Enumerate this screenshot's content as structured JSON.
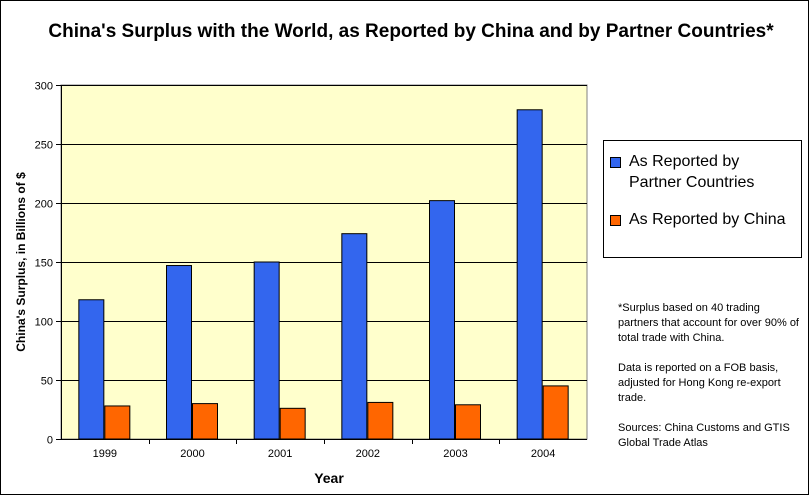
{
  "chart_data": {
    "type": "bar",
    "title": "China's Surplus with the World, as Reported by China and by Partner Countries*",
    "xlabel": "Year",
    "ylabel": "China's Surplus, in Billions of $",
    "ylim": [
      0,
      300
    ],
    "yticks": [
      "0",
      "50",
      "100",
      "150",
      "200",
      "250",
      "300"
    ],
    "categories": [
      "1999",
      "2000",
      "2001",
      "2002",
      "2003",
      "2004"
    ],
    "grid": true,
    "legend_position": "right",
    "series": [
      {
        "name": "As Reported by Partner Countries",
        "color": "#3366ee",
        "values": [
          118,
          147,
          150,
          174,
          202,
          279
        ]
      },
      {
        "name": "As Reported by China",
        "color": "#ff6600",
        "values": [
          28,
          30,
          26,
          31,
          29,
          45
        ]
      }
    ],
    "plot_background": "#ffffcc"
  },
  "notes": [
    "*Surplus based on 40 trading partners that account for over 90% of total trade with China.",
    "Data is reported on a FOB basis, adjusted for Hong Kong re-export trade.",
    "Sources: China Customs and GTIS Global Trade Atlas"
  ]
}
